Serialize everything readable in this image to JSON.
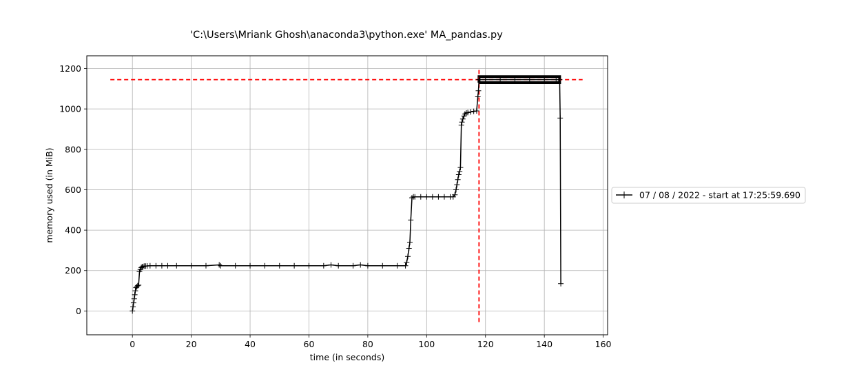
{
  "chart_data": {
    "type": "line",
    "title": "'C:\\Users\\Mriank Ghosh\\anaconda3\\python.exe' MA_pandas.py",
    "xlabel": "time (in seconds)",
    "ylabel": "memory used (in MiB)",
    "xlim": [
      -15.5,
      161.5
    ],
    "ylim": [
      -118,
      1263
    ],
    "x_ticks": [
      0,
      20,
      40,
      60,
      80,
      100,
      120,
      140,
      160
    ],
    "y_ticks": [
      0,
      200,
      400,
      600,
      800,
      1000,
      1200
    ],
    "grid": true,
    "legend_position": "right",
    "series": [
      {
        "name": "07 / 08 / 2022 - start at 17:25:59.690",
        "color": "#000000",
        "marker": "+",
        "x": [
          0,
          0.2,
          0.4,
          0.6,
          0.8,
          1.0,
          1.2,
          1.5,
          1.8,
          2.1,
          2.4,
          2.7,
          3.0,
          3.3,
          3.6,
          4.0,
          4.5,
          5,
          6,
          8,
          10,
          12,
          15,
          20,
          25,
          29.5,
          30,
          35,
          40,
          45,
          50,
          55,
          60,
          65,
          67.5,
          70,
          75,
          77.5,
          80,
          85,
          90,
          92.8,
          93.2,
          93.6,
          94.0,
          94.3,
          94.6,
          95.0,
          95.5,
          96,
          98,
          100,
          102,
          104,
          106,
          108,
          109,
          109.6,
          110.0,
          110.3,
          110.6,
          110.9,
          111.2,
          111.5,
          111.8,
          112.0,
          112.3,
          112.7,
          113.0,
          113.5,
          114,
          115,
          116,
          117,
          117.4,
          117.6,
          117.8,
          118.0,
          120,
          125,
          130,
          135,
          140,
          144,
          145.2,
          145.4,
          145.6
        ],
        "y": [
          0,
          20,
          40,
          60,
          80,
          100,
          115,
          120,
          125,
          128,
          195,
          205,
          215,
          218,
          220,
          222,
          222,
          223,
          224,
          224,
          224,
          224,
          224,
          224,
          224,
          228,
          224,
          224,
          224,
          224,
          224,
          224,
          224,
          224,
          228,
          224,
          224,
          228,
          224,
          224,
          224,
          224,
          240,
          270,
          310,
          340,
          450,
          560,
          565,
          565,
          565,
          565,
          565,
          565,
          565,
          565,
          565,
          575,
          600,
          625,
          650,
          675,
          690,
          710,
          920,
          935,
          950,
          965,
          975,
          980,
          982,
          985,
          988,
          990,
          1060,
          1090,
          1145,
          1145,
          1145,
          1145,
          1145,
          1145,
          1145,
          1145,
          1145,
          955,
          135
        ]
      }
    ],
    "annotations": {
      "max_memory_hline": {
        "y": 1145,
        "x_start": -7.5,
        "x_end": 153,
        "color": "#ff0000",
        "style": "dashed"
      },
      "max_memory_vline": {
        "x": 117.8,
        "y_start": -55,
        "y_end": 1200,
        "color": "#ff0000",
        "style": "dashed"
      },
      "max_memory_bracket": {
        "x_start": 117.8,
        "x_end": 145.2,
        "y_low": 1130,
        "y_high": 1160,
        "color": "#000000"
      }
    }
  }
}
